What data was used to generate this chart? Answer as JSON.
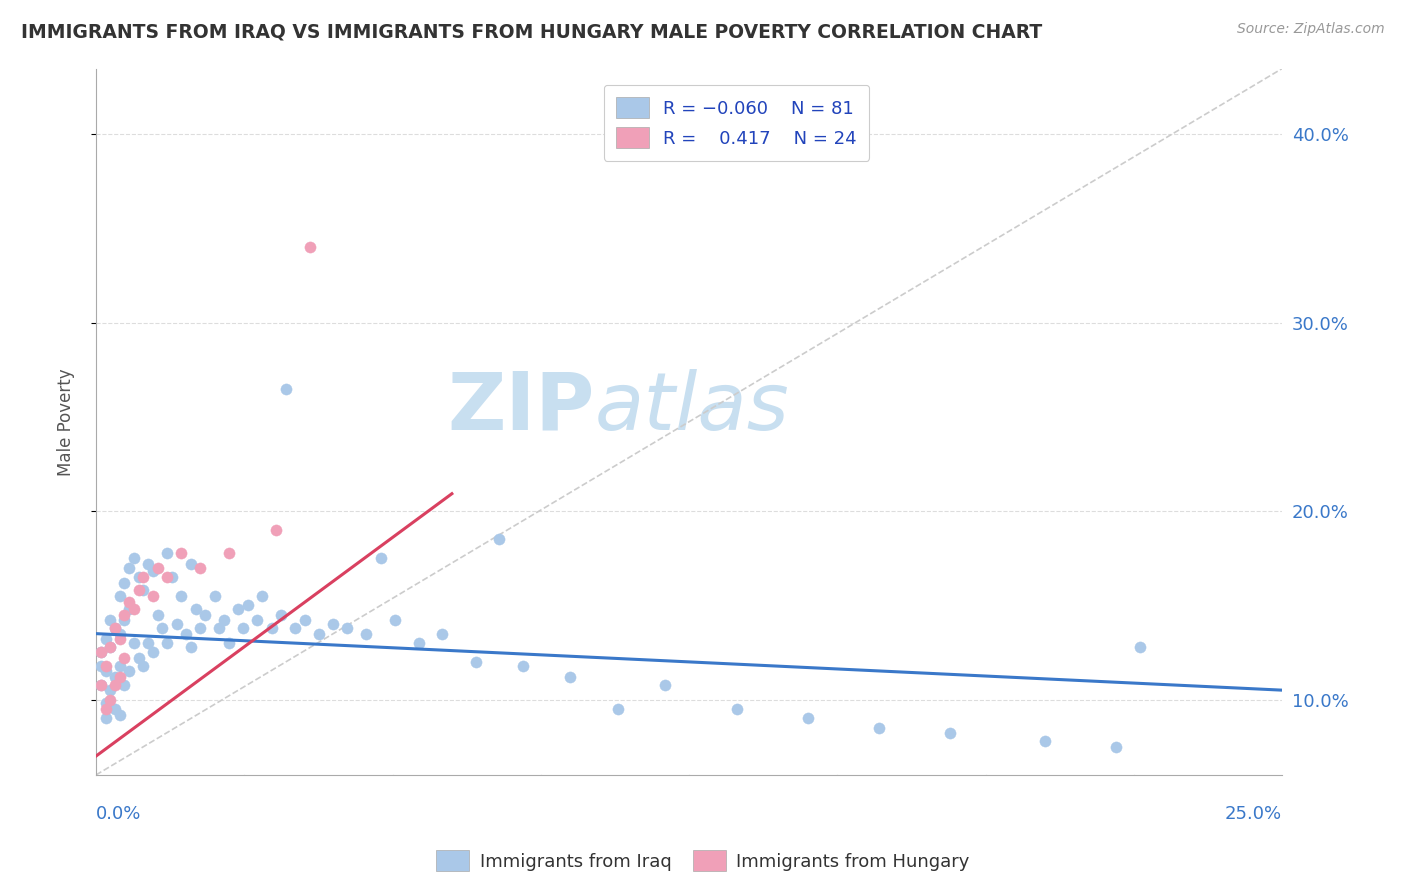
{
  "title": "IMMIGRANTS FROM IRAQ VS IMMIGRANTS FROM HUNGARY MALE POVERTY CORRELATION CHART",
  "source": "Source: ZipAtlas.com",
  "ylabel": "Male Poverty",
  "xlim": [
    0.0,
    0.25
  ],
  "ylim": [
    0.06,
    0.435
  ],
  "ytick_values": [
    0.1,
    0.2,
    0.3,
    0.4
  ],
  "ytick_labels": [
    "10.0%",
    "20.0%",
    "30.0%",
    "40.0%"
  ],
  "blue_color": "#aac8e8",
  "pink_color": "#f0a0b8",
  "trend_blue": "#3a78c9",
  "trend_pink": "#d94060",
  "diag_color": "#cccccc",
  "watermark_color": "#c8dff0",
  "legend_text_color": "#2244bb",
  "title_color": "#333333",
  "source_color": "#999999",
  "iraq_x": [
    0.001,
    0.001,
    0.001,
    0.002,
    0.002,
    0.002,
    0.002,
    0.003,
    0.003,
    0.003,
    0.004,
    0.004,
    0.004,
    0.005,
    0.005,
    0.005,
    0.005,
    0.006,
    0.006,
    0.006,
    0.007,
    0.007,
    0.007,
    0.008,
    0.008,
    0.009,
    0.009,
    0.01,
    0.01,
    0.011,
    0.011,
    0.012,
    0.012,
    0.013,
    0.014,
    0.015,
    0.015,
    0.016,
    0.017,
    0.018,
    0.019,
    0.02,
    0.02,
    0.021,
    0.022,
    0.023,
    0.025,
    0.026,
    0.027,
    0.028,
    0.03,
    0.031,
    0.032,
    0.034,
    0.035,
    0.037,
    0.039,
    0.04,
    0.042,
    0.044,
    0.047,
    0.05,
    0.053,
    0.057,
    0.06,
    0.063,
    0.068,
    0.073,
    0.08,
    0.085,
    0.09,
    0.1,
    0.11,
    0.12,
    0.135,
    0.15,
    0.165,
    0.18,
    0.2,
    0.215,
    0.22
  ],
  "iraq_y": [
    0.125,
    0.118,
    0.108,
    0.132,
    0.115,
    0.098,
    0.09,
    0.142,
    0.128,
    0.105,
    0.138,
    0.112,
    0.095,
    0.155,
    0.135,
    0.118,
    0.092,
    0.162,
    0.142,
    0.108,
    0.17,
    0.148,
    0.115,
    0.175,
    0.13,
    0.165,
    0.122,
    0.158,
    0.118,
    0.172,
    0.13,
    0.168,
    0.125,
    0.145,
    0.138,
    0.178,
    0.13,
    0.165,
    0.14,
    0.155,
    0.135,
    0.172,
    0.128,
    0.148,
    0.138,
    0.145,
    0.155,
    0.138,
    0.142,
    0.13,
    0.148,
    0.138,
    0.15,
    0.142,
    0.155,
    0.138,
    0.145,
    0.265,
    0.138,
    0.142,
    0.135,
    0.14,
    0.138,
    0.135,
    0.175,
    0.142,
    0.13,
    0.135,
    0.12,
    0.185,
    0.118,
    0.112,
    0.095,
    0.108,
    0.095,
    0.09,
    0.085,
    0.082,
    0.078,
    0.075,
    0.128
  ],
  "hungary_x": [
    0.001,
    0.001,
    0.002,
    0.002,
    0.003,
    0.003,
    0.004,
    0.004,
    0.005,
    0.005,
    0.006,
    0.006,
    0.007,
    0.008,
    0.009,
    0.01,
    0.012,
    0.013,
    0.015,
    0.018,
    0.022,
    0.028,
    0.038,
    0.045
  ],
  "hungary_y": [
    0.125,
    0.108,
    0.118,
    0.095,
    0.128,
    0.1,
    0.138,
    0.108,
    0.132,
    0.112,
    0.145,
    0.122,
    0.152,
    0.148,
    0.158,
    0.165,
    0.155,
    0.17,
    0.165,
    0.178,
    0.17,
    0.178,
    0.19,
    0.34
  ]
}
